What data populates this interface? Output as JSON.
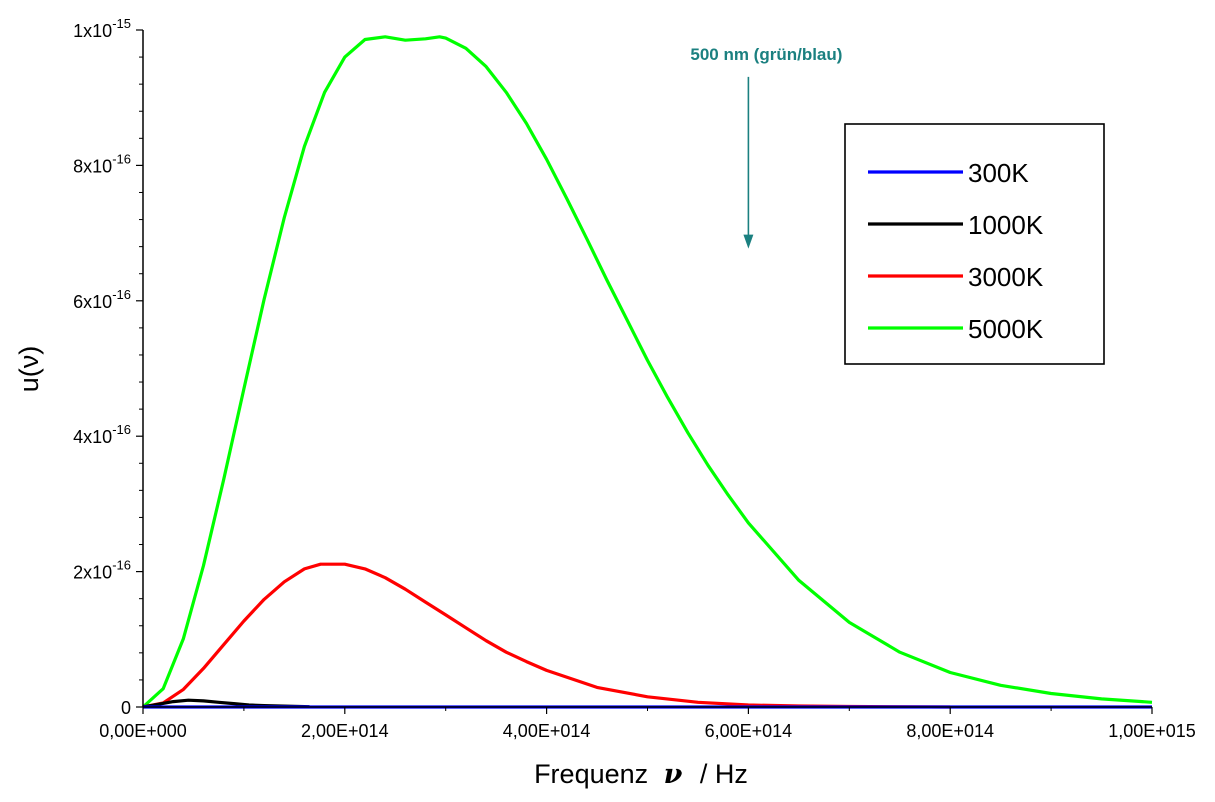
{
  "colors": {
    "300K": "#0000ff",
    "1000K": "#000000",
    "3000K": "#ff0000",
    "5000K": "#00ff00",
    "annotation": "#1b8080"
  },
  "chart_data": {
    "type": "line",
    "title": "",
    "xlabel_text": "Frequenz",
    "xlabel_symbol": "ν",
    "xlabel_unit": "/ Hz",
    "ylabel": "u(ν)",
    "xlim": [
      0,
      1000000000000000.0
    ],
    "ylim": [
      0,
      1e-15
    ],
    "x_ticks": [
      {
        "value": 0,
        "label": "0,00E+000"
      },
      {
        "value": 200000000000000.0,
        "label": "2,00E+014"
      },
      {
        "value": 400000000000000.0,
        "label": "4,00E+014"
      },
      {
        "value": 600000000000000.0,
        "label": "6,00E+014"
      },
      {
        "value": 800000000000000.0,
        "label": "8,00E+014"
      },
      {
        "value": 1000000000000000.0,
        "label": "1,00E+015"
      }
    ],
    "y_ticks": [
      {
        "value": 0,
        "mantissa": "0",
        "exponent": ""
      },
      {
        "value": 2e-16,
        "mantissa": "2x10",
        "exponent": "-16"
      },
      {
        "value": 4e-16,
        "mantissa": "4x10",
        "exponent": "-16"
      },
      {
        "value": 6e-16,
        "mantissa": "6x10",
        "exponent": "-16"
      },
      {
        "value": 8e-16,
        "mantissa": "8x10",
        "exponent": "-16"
      },
      {
        "value": 1e-15,
        "mantissa": "1x10",
        "exponent": "-15"
      }
    ],
    "legend_position": "top-right",
    "grid": false,
    "series": [
      {
        "name": "300K",
        "color": "#0000ff",
        "x": [
          0,
          100000000000000.0,
          200000000000000.0,
          400000000000000.0,
          600000000000000.0,
          800000000000000.0,
          1000000000000000.0
        ],
        "y": [
          0,
          0,
          0,
          0,
          0,
          0,
          0
        ]
      },
      {
        "name": "1000K",
        "color": "#000000",
        "x": [
          0,
          15000000000000.0,
          30000000000000.0,
          45000000000000.0,
          60000000000000.0,
          75000000000000.0,
          90000000000000.0,
          105000000000000.0,
          120000000000000.0,
          135000000000000.0,
          150000000000000.0,
          165000000000000.0
        ],
        "y": [
          0,
          4e-18,
          8e-18,
          1e-17,
          9e-18,
          7e-18,
          5e-18,
          3e-18,
          2e-18,
          1.5e-18,
          1e-18,
          5e-19
        ]
      },
      {
        "name": "3000K",
        "color": "#ff0000",
        "x": [
          0,
          20000000000000.0,
          40000000000000.0,
          60000000000000.0,
          80000000000000.0,
          100000000000000.0,
          120000000000000.0,
          140000000000000.0,
          160000000000000.0,
          176000000000000.0,
          200000000000000.0,
          220000000000000.0,
          240000000000000.0,
          260000000000000.0,
          280000000000000.0,
          300000000000000.0,
          320000000000000.0,
          340000000000000.0,
          360000000000000.0,
          380000000000000.0,
          400000000000000.0,
          450000000000000.0,
          500000000000000.0,
          550000000000000.0,
          600000000000000.0,
          650000000000000.0,
          700000000000000.0,
          800000000000000.0
        ],
        "y": [
          0,
          6e-18,
          2.6e-17,
          5.7e-17,
          9.2e-17,
          1.27e-16,
          1.59e-16,
          1.85e-16,
          2.04e-16,
          2.11e-16,
          2.11e-16,
          2.04e-16,
          1.91e-16,
          1.74e-16,
          1.55e-16,
          1.36e-16,
          1.17e-16,
          9.8e-17,
          8.1e-17,
          6.7e-17,
          5.4e-17,
          2.9e-17,
          1.5e-17,
          7e-18,
          3e-18,
          1.5e-18,
          7e-19,
          0
        ]
      },
      {
        "name": "5000K",
        "color": "#00ff00",
        "x": [
          0,
          20000000000000.0,
          40000000000000.0,
          60000000000000.0,
          80000000000000.0,
          100000000000000.0,
          120000000000000.0,
          140000000000000.0,
          160000000000000.0,
          180000000000000.0,
          200000000000000.0,
          220000000000000.0,
          240000000000000.0,
          260000000000000.0,
          280000000000000.0,
          294000000000000.0,
          300000000000000.0,
          320000000000000.0,
          340000000000000.0,
          360000000000000.0,
          380000000000000.0,
          400000000000000.0,
          420000000000000.0,
          440000000000000.0,
          460000000000000.0,
          480000000000000.0,
          500000000000000.0,
          520000000000000.0,
          540000000000000.0,
          560000000000000.0,
          580000000000000.0,
          600000000000000.0,
          650000000000000.0,
          700000000000000.0,
          750000000000000.0,
          800000000000000.0,
          850000000000000.0,
          900000000000000.0,
          950000000000000.0,
          1000000000000000.0
        ],
        "y": [
          0,
          2.7e-17,
          1.01e-16,
          2.09e-16,
          3.36e-16,
          4.7e-16,
          6.02e-16,
          7.23e-16,
          8.28e-16,
          9.08e-16,
          9.6e-16,
          9.86e-16,
          9.9e-16,
          9.85e-16,
          9.87e-16,
          9.9e-16,
          9.88e-16,
          9.73e-16,
          9.46e-16,
          9.08e-16,
          8.62e-16,
          8.09e-16,
          7.51e-16,
          6.91e-16,
          6.3e-16,
          5.71e-16,
          5.12e-16,
          4.57e-16,
          4.05e-16,
          3.57e-16,
          3.13e-16,
          2.72e-16,
          1.87e-16,
          1.25e-16,
          8.1e-17,
          5.1e-17,
          3.2e-17,
          2e-17,
          1.2e-17,
          7e-18
        ]
      }
    ],
    "annotations": [
      {
        "text": "500 nm (grün/blau)",
        "x": 600000000000000.0,
        "y_from": 9.1e-16,
        "y_to": 6.8e-16
      }
    ]
  }
}
